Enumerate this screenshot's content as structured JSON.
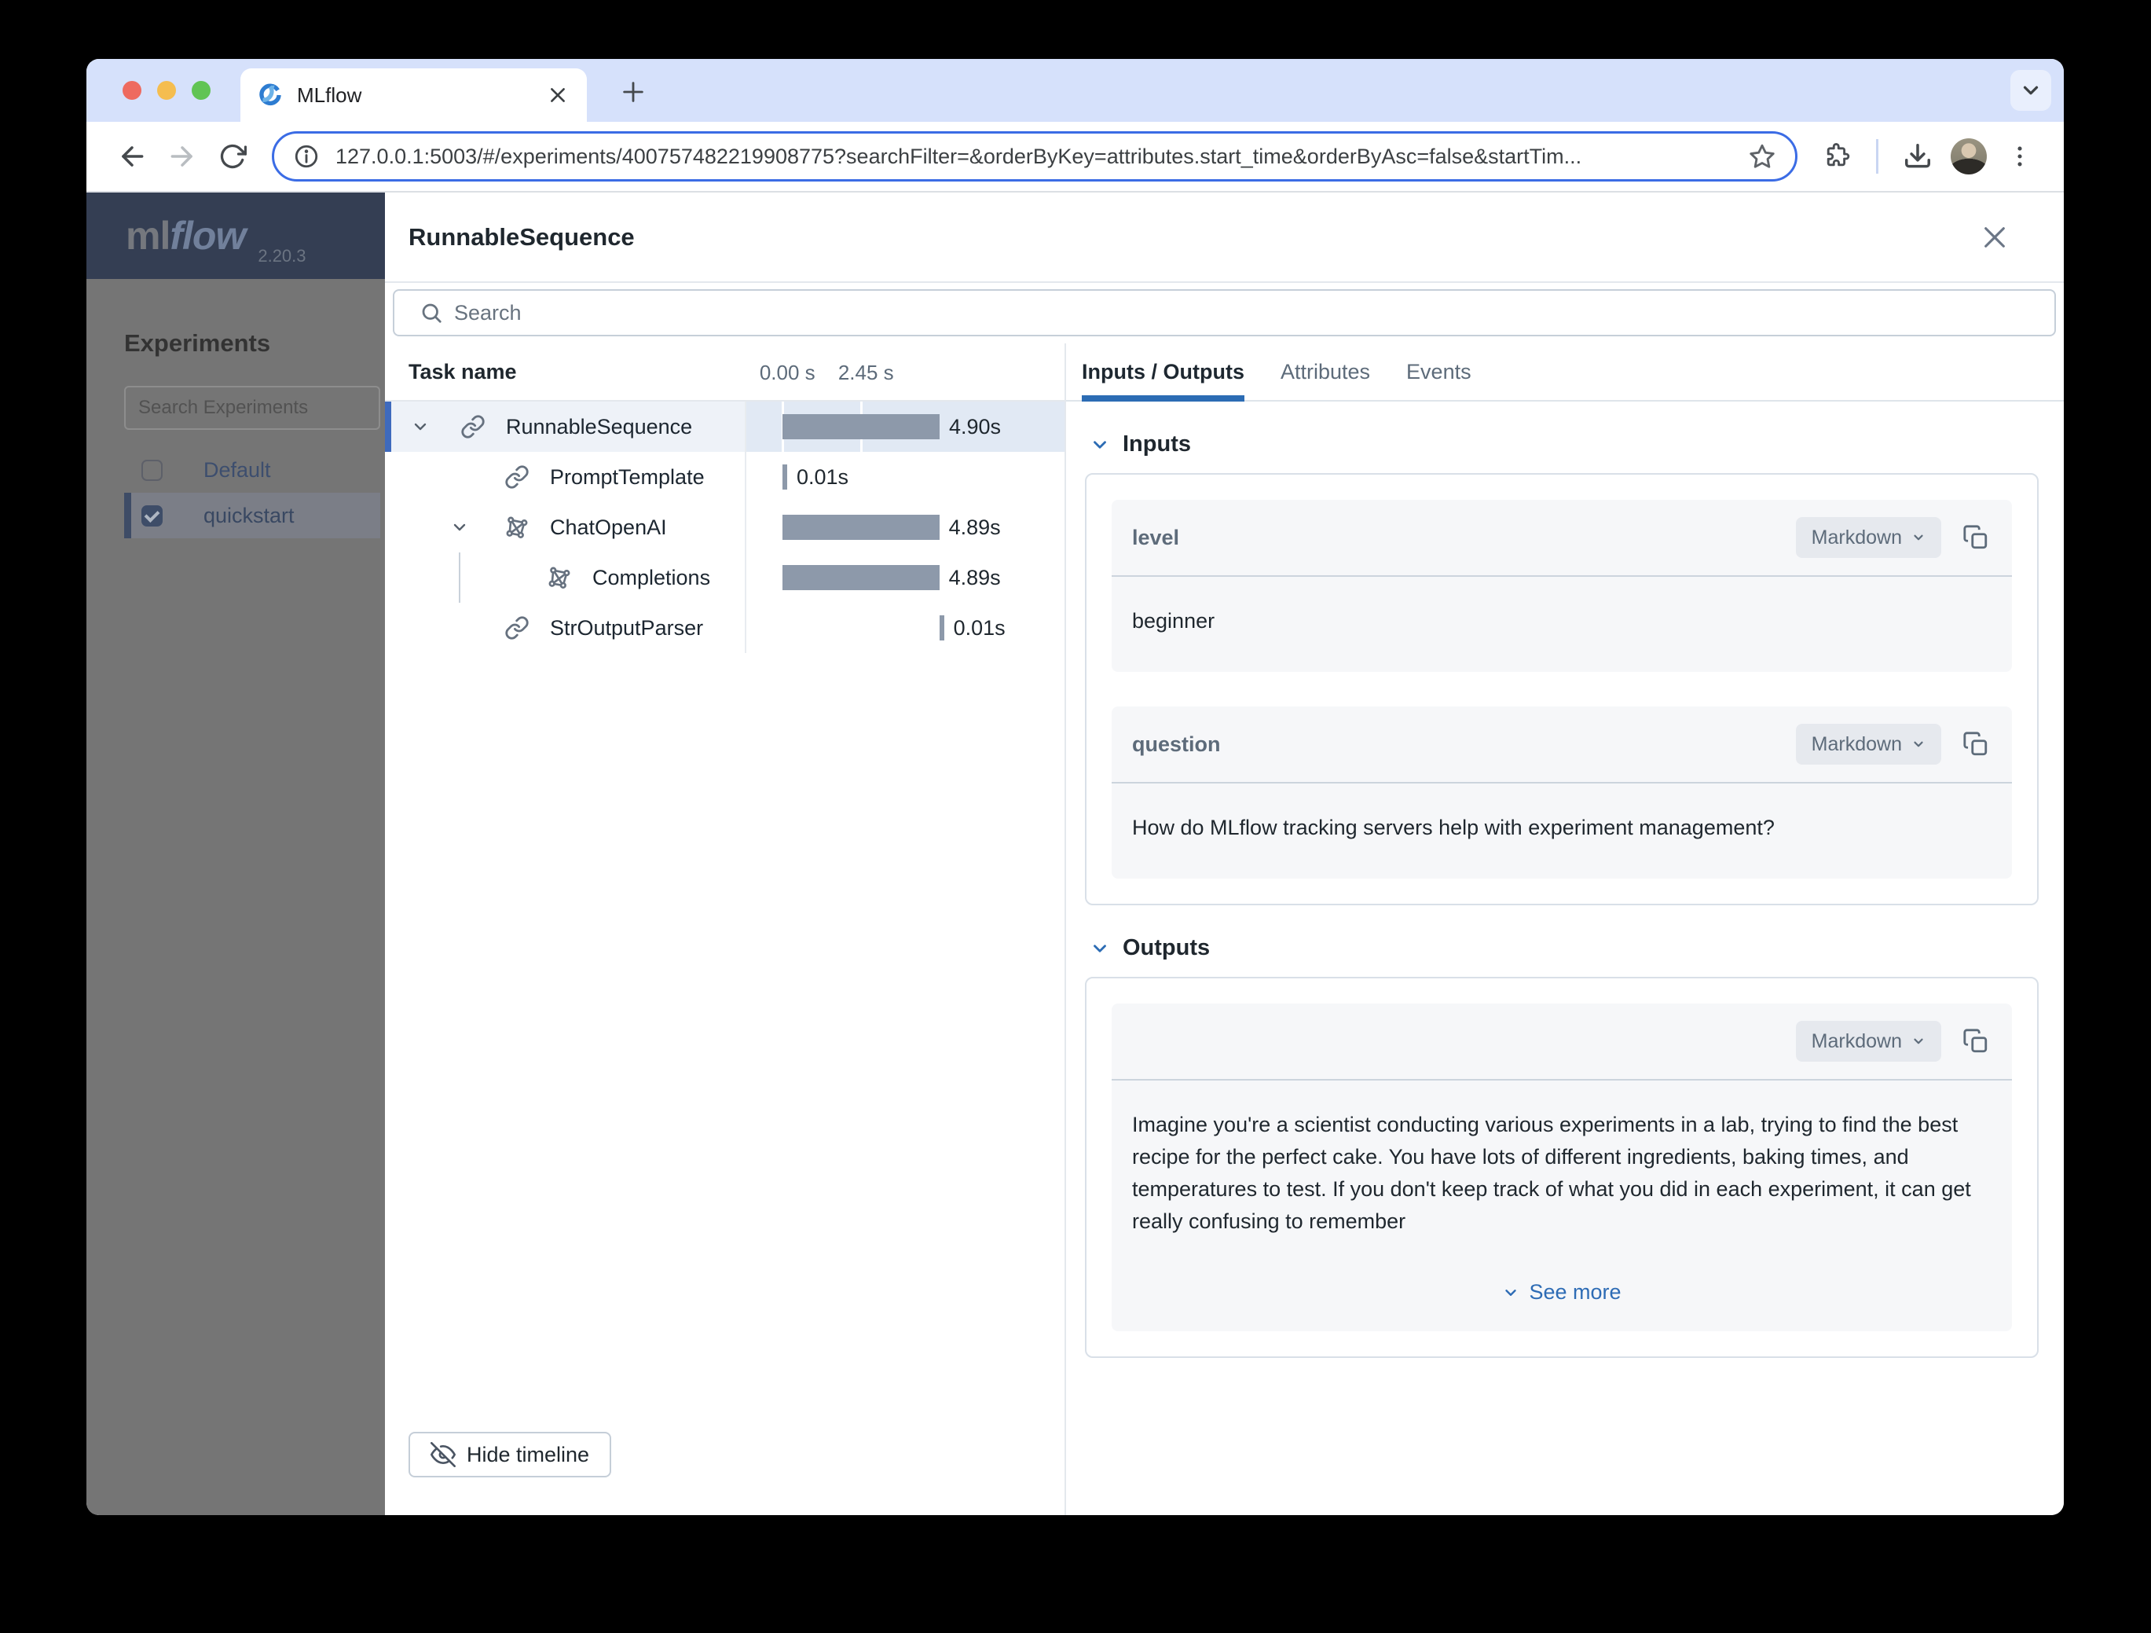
{
  "browser": {
    "tab_title": "MLflow",
    "url": "127.0.0.1:5003/#/experiments/400757482219908775?searchFilter=&orderByKey=attributes.start_time&orderByAsc=false&startTim...",
    "icons": [
      "close-light",
      "minimize-light",
      "zoom-light",
      "mlflow-favicon",
      "tab-close",
      "new-tab-plus",
      "tab-search-chevron",
      "back-arrow",
      "forward-arrow",
      "reload",
      "site-info",
      "bookmark-star",
      "extensions-puzzle",
      "download",
      "profile-avatar",
      "kebab-menu"
    ]
  },
  "sidebar": {
    "logo_ml": "ml",
    "logo_flow": "flow",
    "version": "2.20.3",
    "heading": "Experiments",
    "search_placeholder": "Search Experiments",
    "items": [
      {
        "label": "Default",
        "checked": false,
        "selected": false
      },
      {
        "label": "quickstart",
        "checked": true,
        "selected": true
      }
    ]
  },
  "drawer": {
    "title": "RunnableSequence",
    "search_placeholder": "Search",
    "timeline": {
      "task_header": "Task name",
      "scale_ticks": [
        "0.00 s",
        "2.45 s"
      ],
      "scale_seconds": [
        0.0,
        2.45
      ],
      "rows": [
        {
          "name": "RunnableSequence",
          "duration": "4.90s",
          "icon": "chain-icon",
          "level": 0,
          "expandable": true,
          "selected": true,
          "start_s": 0.0,
          "dur_s": 4.9
        },
        {
          "name": "PromptTemplate",
          "duration": "0.01s",
          "icon": "chain-icon",
          "level": 1,
          "expandable": false,
          "selected": false,
          "start_s": 0.0,
          "dur_s": 0.01
        },
        {
          "name": "ChatOpenAI",
          "duration": "4.89s",
          "icon": "model-icon",
          "level": 1,
          "expandable": true,
          "selected": false,
          "start_s": 0.0,
          "dur_s": 4.89
        },
        {
          "name": "Completions",
          "duration": "4.89s",
          "icon": "model-icon",
          "level": 2,
          "expandable": false,
          "selected": false,
          "start_s": 0.0,
          "dur_s": 4.89
        },
        {
          "name": "StrOutputParser",
          "duration": "0.01s",
          "icon": "chain-icon",
          "level": 1,
          "expandable": false,
          "selected": false,
          "start_s": 4.89,
          "dur_s": 0.01
        }
      ],
      "hide_timeline_label": "Hide timeline"
    },
    "tabs": [
      {
        "label": "Inputs / Outputs",
        "active": true
      },
      {
        "label": "Attributes",
        "active": false
      },
      {
        "label": "Events",
        "active": false
      }
    ],
    "inputs": {
      "heading": "Inputs",
      "fields": [
        {
          "label": "level",
          "format": "Markdown",
          "value": "beginner"
        },
        {
          "label": "question",
          "format": "Markdown",
          "value": "How do MLflow tracking servers help with experiment management?"
        }
      ]
    },
    "outputs": {
      "heading": "Outputs",
      "fields": [
        {
          "label": "",
          "format": "Markdown",
          "value": "Imagine you're a scientist conducting various experiments in a lab, trying to find the best recipe for the perfect cake. You have lots of different ingredients, baking times, and temperatures to test. If you don't keep track of what you did in each experiment, it can get really confusing to remember"
        }
      ],
      "see_more": "See more"
    }
  },
  "colors": {
    "accent_blue": "#2c6cb4",
    "selected_row_accent": "#3e6abd",
    "timeline_bar": "#8d99aa",
    "brand_navy": "#343e53",
    "tabstrip_bg": "#d6e1fb",
    "url_focus_ring": "#3b6ce5"
  }
}
